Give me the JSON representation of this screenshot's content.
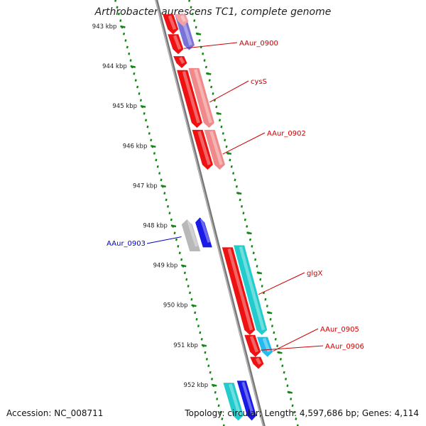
{
  "title": "Arthrobacter aurescens TC1, complete genome",
  "footer": {
    "accession": "Accession: NC_008711",
    "topology": "Topology: circular; Length: 4,597,686 bp; Genes: 4,114"
  },
  "ruler": {
    "ticks": [
      "943 kbp",
      "944 kbp",
      "945 kbp",
      "946 kbp",
      "947 kbp",
      "948 kbp",
      "949 kbp",
      "950 kbp",
      "951 kbp",
      "952 kbp"
    ]
  },
  "genes": [
    {
      "id": "g_purple_top",
      "name": "",
      "strand": "+",
      "track": "back",
      "color": "#7a72d8",
      "start": 942.7,
      "end": 943.6
    },
    {
      "id": "g_pink_top",
      "name": "",
      "strand": "+",
      "track": "back",
      "color": "#f2a0a0",
      "start": 942.7,
      "end": 943.0
    },
    {
      "id": "g_red_0899a",
      "name": "",
      "strand": "+",
      "track": "cds",
      "color": "#ee1111",
      "start": 942.7,
      "end": 943.2
    },
    {
      "id": "g_red_0900",
      "name": "AAur_0900",
      "strand": "+",
      "track": "cds",
      "color": "#ee1111",
      "start": 943.2,
      "end": 943.7
    },
    {
      "id": "g_red_0900b",
      "name": "",
      "strand": "+",
      "track": "cds",
      "color": "#ee1111",
      "start": 943.75,
      "end": 944.05
    },
    {
      "id": "g_cysS_red",
      "name": "cysS",
      "strand": "+",
      "track": "cds",
      "color": "#ee1111",
      "start": 944.1,
      "end": 945.55
    },
    {
      "id": "g_cysS_pink",
      "name": "",
      "strand": "+",
      "track": "back",
      "color": "#f08a8a",
      "start": 944.05,
      "end": 945.55
    },
    {
      "id": "g_0902_red",
      "name": "AAur_0902",
      "strand": "+",
      "track": "cds",
      "color": "#ee1111",
      "start": 945.6,
      "end": 946.6
    },
    {
      "id": "g_0902_pink",
      "name": "",
      "strand": "+",
      "track": "back",
      "color": "#f08a8a",
      "start": 945.6,
      "end": 946.6
    },
    {
      "id": "g_0903_grey",
      "name": "AAur_0903",
      "strand": "-",
      "track": "neg_back",
      "color": "#b8b8b8",
      "start": 947.85,
      "end": 948.65
    },
    {
      "id": "g_0903_blue",
      "name": "",
      "strand": "-",
      "track": "neg_cds",
      "color": "#1a1ae6",
      "start": 947.8,
      "end": 948.55
    },
    {
      "id": "g_glgX_red",
      "name": "glgX",
      "strand": "+",
      "track": "cds",
      "color": "#ee1111",
      "start": 948.55,
      "end": 950.75
    },
    {
      "id": "g_glgX_cyan",
      "name": "",
      "strand": "+",
      "track": "back",
      "color": "#22cccc",
      "start": 948.5,
      "end": 950.75
    },
    {
      "id": "g_0905_cyan",
      "name": "AAur_0905",
      "strand": "+",
      "track": "back",
      "color": "#22bbee",
      "start": 950.8,
      "end": 951.3
    },
    {
      "id": "g_0906_red",
      "name": "AAur_0906",
      "strand": "+",
      "track": "cds",
      "color": "#ee1111",
      "start": 950.75,
      "end": 951.3
    },
    {
      "id": "g_0906b_red",
      "name": "",
      "strand": "+",
      "track": "cds",
      "color": "#ee1111",
      "start": 951.3,
      "end": 951.6
    },
    {
      "id": "g_bot_cyan",
      "name": "",
      "strand": "+",
      "track": "neg_back",
      "color": "#22cccc",
      "start": 951.95,
      "end": 952.9
    },
    {
      "id": "g_bot_blue",
      "name": "",
      "strand": "+",
      "track": "neg_cds",
      "color": "#1a1ae6",
      "start": 951.9,
      "end": 952.9
    }
  ],
  "labels": [
    {
      "text": "AAur_0900",
      "color": "#cc0000",
      "gene": "g_red_0900"
    },
    {
      "text": "cysS",
      "color": "#cc0000",
      "gene": "g_cysS_pink"
    },
    {
      "text": "AAur_0902",
      "color": "#cc0000",
      "gene": "g_0902_pink"
    },
    {
      "text": "AAur_0903",
      "color": "#0000cc",
      "gene": "g_0903_grey"
    },
    {
      "text": "glgX",
      "color": "#cc0000",
      "gene": "g_glgX_cyan"
    },
    {
      "text": "AAur_0905",
      "color": "#cc0000",
      "gene": "g_0905_cyan"
    },
    {
      "text": "AAur_0906",
      "color": "#cc0000",
      "gene": "g_0906_red"
    }
  ]
}
